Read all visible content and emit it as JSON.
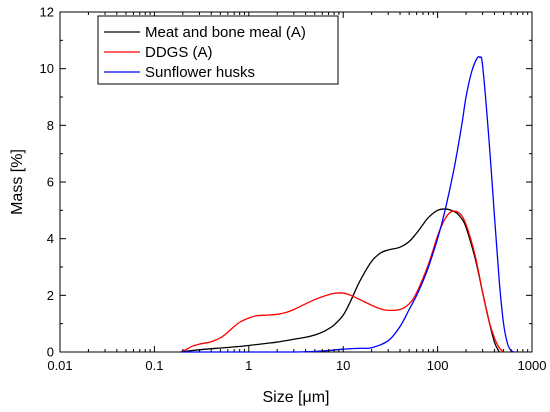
{
  "chart_data": {
    "type": "line",
    "xlabel": "Size [μm]",
    "ylabel": "Mass [%]",
    "x_scale": "log",
    "xlim": [
      0.01,
      1000
    ],
    "ylim": [
      0,
      12
    ],
    "x_ticks": [
      0.01,
      0.1,
      1,
      10,
      100,
      1000
    ],
    "x_tick_labels": [
      "0.01",
      "0.1",
      "1",
      "10",
      "100",
      "1000"
    ],
    "y_ticks": [
      0,
      2,
      4,
      6,
      8,
      10,
      12
    ],
    "y_tick_labels": [
      "0",
      "2",
      "4",
      "6",
      "8",
      "10",
      "12"
    ],
    "grid": false,
    "legend_position": "top-left",
    "series": [
      {
        "name": "Meat and bone meal (A)",
        "color": "#000000",
        "x": [
          0.19,
          0.25,
          0.35,
          0.5,
          0.7,
          1,
          1.5,
          2,
          3,
          4,
          5,
          6,
          7,
          8,
          10,
          12,
          15,
          20,
          25,
          30,
          40,
          50,
          60,
          70,
          80,
          100,
          120,
          140,
          160,
          180,
          200,
          250,
          300,
          350,
          400,
          450
        ],
        "y": [
          0,
          0.05,
          0.1,
          0.14,
          0.18,
          0.23,
          0.3,
          0.35,
          0.45,
          0.52,
          0.6,
          0.7,
          0.82,
          0.95,
          1.3,
          1.8,
          2.5,
          3.2,
          3.5,
          3.6,
          3.7,
          3.9,
          4.2,
          4.5,
          4.75,
          5.0,
          5.05,
          5.0,
          4.9,
          4.7,
          4.4,
          3.3,
          2.1,
          1.1,
          0.35,
          0
        ]
      },
      {
        "name": "DDGS (A)",
        "color": "#ff0000",
        "x": [
          0.19,
          0.22,
          0.25,
          0.3,
          0.35,
          0.4,
          0.5,
          0.6,
          0.7,
          0.8,
          1,
          1.2,
          1.5,
          2,
          2.5,
          3,
          4,
          5,
          6,
          7,
          8,
          10,
          12,
          15,
          20,
          25,
          30,
          40,
          50,
          60,
          80,
          100,
          120,
          140,
          170,
          200,
          250,
          300,
          350,
          400,
          450,
          500
        ],
        "y": [
          0,
          0.1,
          0.2,
          0.28,
          0.32,
          0.36,
          0.5,
          0.7,
          0.9,
          1.05,
          1.2,
          1.28,
          1.3,
          1.33,
          1.4,
          1.5,
          1.7,
          1.85,
          1.95,
          2.02,
          2.07,
          2.08,
          2.0,
          1.85,
          1.65,
          1.52,
          1.47,
          1.5,
          1.7,
          2.1,
          3.1,
          4.1,
          4.7,
          4.95,
          4.9,
          4.5,
          3.4,
          2.1,
          1.1,
          0.5,
          0.15,
          0
        ]
      },
      {
        "name": "Sunflower husks",
        "color": "#0000ff",
        "x": [
          0.19,
          1,
          3,
          5,
          7,
          10,
          15,
          20,
          30,
          40,
          50,
          60,
          70,
          80,
          100,
          120,
          150,
          180,
          200,
          230,
          260,
          280,
          300,
          350,
          400,
          450,
          500,
          550,
          600,
          650
        ],
        "y": [
          0,
          0,
          0,
          0.02,
          0.05,
          0.1,
          0.13,
          0.15,
          0.4,
          0.9,
          1.5,
          2.0,
          2.5,
          3.0,
          4.0,
          5.0,
          6.5,
          8.0,
          9.0,
          9.9,
          10.35,
          10.4,
          10.1,
          7.5,
          4.8,
          2.5,
          1.0,
          0.3,
          0.05,
          0
        ]
      }
    ]
  }
}
